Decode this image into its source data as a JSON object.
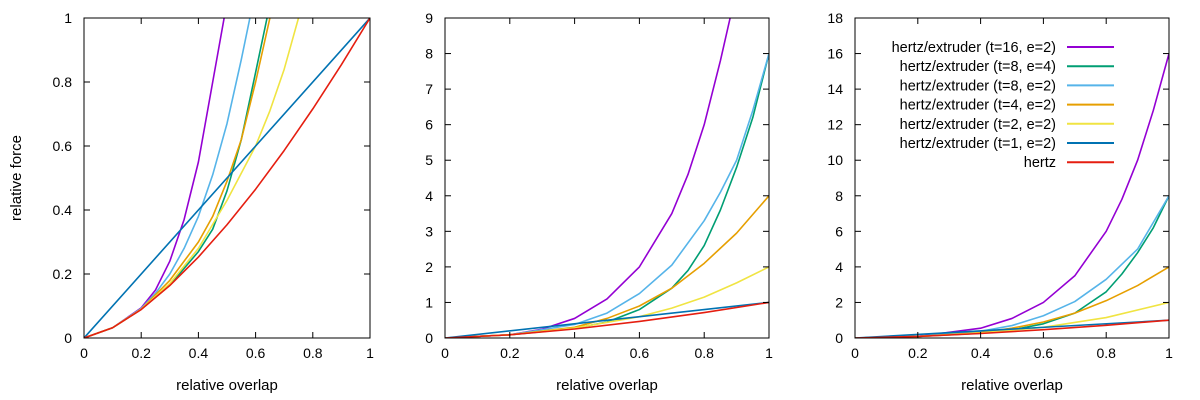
{
  "figure": {
    "ylabel": "relative force"
  },
  "colors": {
    "t16": "#9400d3",
    "t8e4": "#009e73",
    "t8e2": "#56b4e9",
    "t4": "#e69f00",
    "t2": "#f0e442",
    "t1": "#0072b2",
    "hertz": "#e51e10"
  },
  "chart_data": [
    {
      "type": "line",
      "xlabel": "relative overlap",
      "ylabel": "relative force",
      "xlim": [
        0,
        1
      ],
      "ylim": [
        0,
        1
      ],
      "xticks": [
        "0",
        "0.2",
        "0.4",
        "0.6",
        "0.8",
        "1"
      ],
      "yticks": [
        "0",
        "0.2",
        "0.4",
        "0.6",
        "0.8",
        "1"
      ],
      "grid": false,
      "series": [
        {
          "name": "hertz/extruder (t=16, e=2)",
          "color": "#9400d3",
          "x": [
            0,
            0.1,
            0.2,
            0.25,
            0.3,
            0.35,
            0.4,
            0.45,
            0.49
          ],
          "y": [
            0,
            0.032,
            0.094,
            0.15,
            0.24,
            0.37,
            0.55,
            0.8,
            1.0
          ]
        },
        {
          "name": "hertz/extruder (t=8,  e=4)",
          "color": "#009e73",
          "x": [
            0,
            0.1,
            0.2,
            0.3,
            0.4,
            0.45,
            0.5,
            0.55,
            0.6,
            0.64
          ],
          "y": [
            0,
            0.032,
            0.09,
            0.165,
            0.27,
            0.34,
            0.46,
            0.62,
            0.83,
            1.0
          ]
        },
        {
          "name": "hertz/extruder (t=8,  e=2)",
          "color": "#56b4e9",
          "x": [
            0,
            0.1,
            0.2,
            0.25,
            0.3,
            0.35,
            0.4,
            0.45,
            0.5,
            0.55,
            0.58
          ],
          "y": [
            0,
            0.032,
            0.092,
            0.14,
            0.2,
            0.28,
            0.38,
            0.51,
            0.67,
            0.87,
            1.0
          ]
        },
        {
          "name": "hertz/extruder (t=4,  e=2)",
          "color": "#e69f00",
          "x": [
            0,
            0.1,
            0.2,
            0.3,
            0.4,
            0.45,
            0.5,
            0.55,
            0.6,
            0.65
          ],
          "y": [
            0,
            0.032,
            0.09,
            0.18,
            0.3,
            0.38,
            0.49,
            0.62,
            0.8,
            1.0
          ]
        },
        {
          "name": "hertz/extruder (t=2,  e=2)",
          "color": "#f0e442",
          "x": [
            0,
            0.1,
            0.2,
            0.3,
            0.4,
            0.5,
            0.6,
            0.65,
            0.7,
            0.75
          ],
          "y": [
            0,
            0.032,
            0.09,
            0.17,
            0.28,
            0.43,
            0.6,
            0.71,
            0.84,
            1.0
          ]
        },
        {
          "name": "hertz/extruder (t=1,  e=2)",
          "color": "#0072b2",
          "x": [
            0,
            1
          ],
          "y": [
            0,
            1.0
          ]
        },
        {
          "name": "hertz",
          "color": "#e51e10",
          "x": [
            0,
            0.1,
            0.2,
            0.3,
            0.4,
            0.5,
            0.6,
            0.7,
            0.8,
            0.9,
            1.0
          ],
          "y": [
            0,
            0.032,
            0.089,
            0.164,
            0.253,
            0.354,
            0.465,
            0.586,
            0.716,
            0.854,
            1.0
          ]
        }
      ]
    },
    {
      "type": "line",
      "xlabel": "relative overlap",
      "ylabel": "",
      "xlim": [
        0,
        1
      ],
      "ylim": [
        0,
        9
      ],
      "xticks": [
        "0",
        "0.2",
        "0.4",
        "0.6",
        "0.8",
        "1"
      ],
      "yticks": [
        "0",
        "1",
        "2",
        "3",
        "4",
        "5",
        "6",
        "7",
        "8",
        "9"
      ],
      "grid": false,
      "series": [
        {
          "name": "hertz/extruder (t=16, e=2)",
          "color": "#9400d3",
          "x": [
            0,
            0.2,
            0.3,
            0.4,
            0.5,
            0.6,
            0.7,
            0.75,
            0.8,
            0.85,
            0.88
          ],
          "y": [
            0,
            0.09,
            0.25,
            0.55,
            1.1,
            2.0,
            3.5,
            4.6,
            6.0,
            7.8,
            9.0
          ]
        },
        {
          "name": "hertz/extruder (t=8,  e=4)",
          "color": "#009e73",
          "x": [
            0,
            0.2,
            0.4,
            0.5,
            0.6,
            0.7,
            0.75,
            0.8,
            0.85,
            0.9,
            0.95,
            1.0
          ],
          "y": [
            0,
            0.09,
            0.27,
            0.45,
            0.8,
            1.4,
            1.9,
            2.6,
            3.6,
            4.8,
            6.2,
            8.0
          ]
        },
        {
          "name": "hertz/extruder (t=8,  e=2)",
          "color": "#56b4e9",
          "x": [
            0,
            0.2,
            0.4,
            0.5,
            0.6,
            0.7,
            0.8,
            0.85,
            0.9,
            0.95,
            1.0
          ],
          "y": [
            0,
            0.09,
            0.38,
            0.7,
            1.25,
            2.05,
            3.3,
            4.1,
            5.0,
            6.4,
            8.0
          ]
        },
        {
          "name": "hertz/extruder (t=4,  e=2)",
          "color": "#e69f00",
          "x": [
            0,
            0.2,
            0.4,
            0.5,
            0.6,
            0.7,
            0.8,
            0.9,
            1.0
          ],
          "y": [
            0,
            0.09,
            0.3,
            0.55,
            0.9,
            1.4,
            2.1,
            2.95,
            4.0
          ]
        },
        {
          "name": "hertz/extruder (t=2,  e=2)",
          "color": "#f0e442",
          "x": [
            0,
            0.2,
            0.4,
            0.6,
            0.7,
            0.8,
            0.9,
            1.0
          ],
          "y": [
            0,
            0.09,
            0.28,
            0.6,
            0.84,
            1.15,
            1.55,
            2.0
          ]
        },
        {
          "name": "hertz/extruder (t=1,  e=2)",
          "color": "#0072b2",
          "x": [
            0,
            1
          ],
          "y": [
            0,
            1.0
          ]
        },
        {
          "name": "hertz",
          "color": "#e51e10",
          "x": [
            0,
            0.2,
            0.4,
            0.6,
            0.8,
            1.0
          ],
          "y": [
            0,
            0.089,
            0.253,
            0.465,
            0.716,
            1.0
          ]
        }
      ]
    },
    {
      "type": "line",
      "xlabel": "relative overlap",
      "ylabel": "",
      "xlim": [
        0,
        1
      ],
      "ylim": [
        0,
        18
      ],
      "xticks": [
        "0",
        "0.2",
        "0.4",
        "0.6",
        "0.8",
        "1"
      ],
      "yticks": [
        "0",
        "2",
        "4",
        "6",
        "8",
        "10",
        "12",
        "14",
        "16",
        "18"
      ],
      "grid": false,
      "legend": "top-right",
      "series": [
        {
          "name": "hertz/extruder (t=16, e=2)",
          "color": "#9400d3",
          "x": [
            0,
            0.2,
            0.4,
            0.5,
            0.6,
            0.7,
            0.8,
            0.85,
            0.9,
            0.95,
            1.0
          ],
          "y": [
            0,
            0.09,
            0.55,
            1.1,
            2.0,
            3.5,
            6.0,
            7.8,
            10.0,
            12.8,
            16.0
          ]
        },
        {
          "name": "hertz/extruder (t=8,  e=4)",
          "color": "#009e73",
          "x": [
            0,
            0.2,
            0.4,
            0.5,
            0.6,
            0.7,
            0.8,
            0.85,
            0.9,
            0.95,
            1.0
          ],
          "y": [
            0,
            0.09,
            0.27,
            0.45,
            0.8,
            1.4,
            2.6,
            3.6,
            4.8,
            6.2,
            8.0
          ]
        },
        {
          "name": "hertz/extruder (t=8,  e=2)",
          "color": "#56b4e9",
          "x": [
            0,
            0.2,
            0.4,
            0.5,
            0.6,
            0.7,
            0.8,
            0.9,
            1.0
          ],
          "y": [
            0,
            0.09,
            0.38,
            0.7,
            1.25,
            2.05,
            3.3,
            5.0,
            8.0
          ]
        },
        {
          "name": "hertz/extruder (t=4,  e=2)",
          "color": "#e69f00",
          "x": [
            0,
            0.2,
            0.4,
            0.5,
            0.6,
            0.7,
            0.8,
            0.9,
            1.0
          ],
          "y": [
            0,
            0.09,
            0.3,
            0.55,
            0.9,
            1.4,
            2.1,
            2.95,
            4.0
          ]
        },
        {
          "name": "hertz/extruder (t=2,  e=2)",
          "color": "#f0e442",
          "x": [
            0,
            0.2,
            0.4,
            0.6,
            0.8,
            1.0
          ],
          "y": [
            0,
            0.09,
            0.28,
            0.6,
            1.15,
            2.0
          ]
        },
        {
          "name": "hertz/extruder (t=1,  e=2)",
          "color": "#0072b2",
          "x": [
            0,
            1
          ],
          "y": [
            0,
            1.0
          ]
        },
        {
          "name": "hertz",
          "color": "#e51e10",
          "x": [
            0,
            0.2,
            0.4,
            0.6,
            0.8,
            1.0
          ],
          "y": [
            0,
            0.089,
            0.253,
            0.465,
            0.716,
            1.0
          ]
        }
      ]
    }
  ]
}
